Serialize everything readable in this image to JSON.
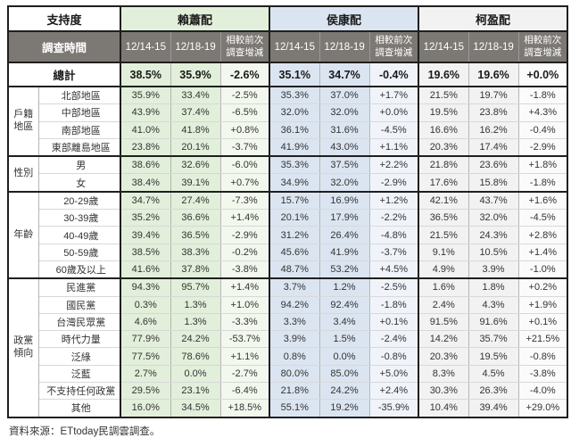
{
  "header": {
    "support_label": "支持度",
    "time_label": "調查時間",
    "date_cols": [
      "12/14-15",
      "12/18-19"
    ],
    "change_col": "相較前次\n調查增減",
    "groups": [
      "賴蕭配",
      "侯康配",
      "柯盈配"
    ]
  },
  "colors": {
    "lai_bg": "#e2efda",
    "lai_change_bg": "#f3f8ee",
    "hou_bg": "#dbe5f1",
    "hou_change_bg": "#f0f4fa",
    "ko_bg": "#f2f2f2",
    "ko_change_bg": "#fbfbfb",
    "header_dark": "#7c7874",
    "positive": "#5555cc",
    "negative": "#e53935"
  },
  "total_row": {
    "label": "總計",
    "values": [
      "38.5%",
      "35.9%",
      "-2.6%",
      "35.1%",
      "34.7%",
      "-0.4%",
      "19.6%",
      "19.6%",
      "+0.0%"
    ]
  },
  "sections": [
    {
      "group": "戶籍地區",
      "rows": [
        {
          "label": "北部地區",
          "values": [
            "35.9%",
            "33.4%",
            "-2.5%",
            "35.3%",
            "37.0%",
            "+1.7%",
            "21.5%",
            "19.7%",
            "-1.8%"
          ]
        },
        {
          "label": "中部地區",
          "values": [
            "43.9%",
            "37.4%",
            "-6.5%",
            "32.0%",
            "32.0%",
            "+0.0%",
            "19.5%",
            "23.8%",
            "+4.3%"
          ]
        },
        {
          "label": "南部地區",
          "values": [
            "41.0%",
            "41.8%",
            "+0.8%",
            "36.1%",
            "31.6%",
            "-4.5%",
            "16.6%",
            "16.2%",
            "-0.4%"
          ]
        },
        {
          "label": "東部離島地區",
          "values": [
            "23.8%",
            "20.1%",
            "-3.7%",
            "41.9%",
            "43.0%",
            "+1.1%",
            "20.3%",
            "17.4%",
            "-2.9%"
          ]
        }
      ]
    },
    {
      "group": "性別",
      "rows": [
        {
          "label": "男",
          "values": [
            "38.6%",
            "32.6%",
            "-6.0%",
            "35.3%",
            "37.5%",
            "+2.2%",
            "21.8%",
            "23.6%",
            "+1.8%"
          ]
        },
        {
          "label": "女",
          "values": [
            "38.4%",
            "39.1%",
            "+0.7%",
            "34.9%",
            "32.0%",
            "-2.9%",
            "17.6%",
            "15.8%",
            "-1.8%"
          ]
        }
      ]
    },
    {
      "group": "年齡",
      "rows": [
        {
          "label": "20-29歲",
          "values": [
            "34.7%",
            "27.4%",
            "-7.3%",
            "15.7%",
            "16.9%",
            "+1.2%",
            "42.1%",
            "43.7%",
            "+1.6%"
          ]
        },
        {
          "label": "30-39歲",
          "values": [
            "35.2%",
            "36.6%",
            "+1.4%",
            "20.1%",
            "17.9%",
            "-2.2%",
            "36.5%",
            "32.0%",
            "-4.5%"
          ]
        },
        {
          "label": "40-49歲",
          "values": [
            "39.4%",
            "36.5%",
            "-2.9%",
            "31.2%",
            "26.4%",
            "-4.8%",
            "21.5%",
            "24.3%",
            "+2.8%"
          ]
        },
        {
          "label": "50-59歲",
          "values": [
            "38.5%",
            "38.3%",
            "-0.2%",
            "45.6%",
            "41.9%",
            "-3.7%",
            "9.1%",
            "10.5%",
            "+1.4%"
          ]
        },
        {
          "label": "60歲及以上",
          "values": [
            "41.6%",
            "37.8%",
            "-3.8%",
            "48.7%",
            "53.2%",
            "+4.5%",
            "4.9%",
            "3.9%",
            "-1.0%"
          ]
        }
      ]
    },
    {
      "group": "政黨傾向",
      "rows": [
        {
          "label": "民進黨",
          "values": [
            "94.3%",
            "95.7%",
            "+1.4%",
            "3.7%",
            "1.2%",
            "-2.5%",
            "1.6%",
            "1.8%",
            "+0.2%"
          ]
        },
        {
          "label": "國民黨",
          "values": [
            "0.3%",
            "1.3%",
            "+1.0%",
            "94.2%",
            "92.4%",
            "-1.8%",
            "2.4%",
            "4.3%",
            "+1.9%"
          ]
        },
        {
          "label": "台灣民眾黨",
          "values": [
            "4.6%",
            "1.3%",
            "-3.3%",
            "3.3%",
            "3.4%",
            "+0.1%",
            "91.5%",
            "91.6%",
            "+0.1%"
          ]
        },
        {
          "label": "時代力量",
          "values": [
            "77.9%",
            "24.2%",
            "-53.7%",
            "3.9%",
            "1.5%",
            "-2.4%",
            "14.2%",
            "35.7%",
            "+21.5%"
          ]
        },
        {
          "label": "泛綠",
          "values": [
            "77.5%",
            "78.6%",
            "+1.1%",
            "0.8%",
            "0.0%",
            "-0.8%",
            "20.3%",
            "19.5%",
            "-0.8%"
          ]
        },
        {
          "label": "泛藍",
          "values": [
            "2.7%",
            "0.0%",
            "-2.7%",
            "80.0%",
            "85.0%",
            "+5.0%",
            "8.3%",
            "4.5%",
            "-3.8%"
          ]
        },
        {
          "label": "不支持任何政黨",
          "values": [
            "29.5%",
            "23.1%",
            "-6.4%",
            "21.8%",
            "24.2%",
            "+2.4%",
            "30.3%",
            "26.3%",
            "-4.0%"
          ]
        },
        {
          "label": "其他",
          "values": [
            "16.0%",
            "34.5%",
            "+18.5%",
            "55.1%",
            "19.2%",
            "-35.9%",
            "10.4%",
            "39.4%",
            "+29.0%"
          ]
        }
      ]
    }
  ],
  "footer": "資料來源：ETtoday民調雲調查。",
  "chart_data": {
    "type": "table",
    "title": "支持度",
    "survey_dates": [
      "12/14-15",
      "12/18-19"
    ],
    "candidates": [
      "賴蕭配",
      "侯康配",
      "柯盈配"
    ],
    "columns_per_candidate": [
      "12/14-15",
      "12/18-19",
      "相較前次調查增減"
    ],
    "total": {
      "賴蕭配": [
        38.5,
        35.9,
        -2.6
      ],
      "侯康配": [
        35.1,
        34.7,
        -0.4
      ],
      "柯盈配": [
        19.6,
        19.6,
        0.0
      ]
    },
    "note": "All row-level values (percent) are stored in sections[] above; negatives shown red, positives blue."
  }
}
